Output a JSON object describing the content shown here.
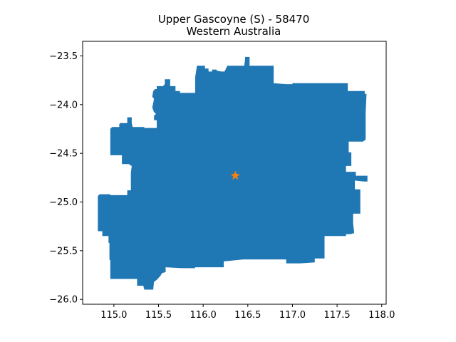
{
  "chart_data": {
    "type": "map",
    "title": "Upper Gascoyne (S) - 58470",
    "subtitle": "Western Australia",
    "xlim": [
      114.65,
      118.05
    ],
    "ylim": [
      -26.05,
      -23.35
    ],
    "x_ticks": [
      {
        "value": 115.0,
        "label": "115.0"
      },
      {
        "value": 115.5,
        "label": "115.5"
      },
      {
        "value": 116.0,
        "label": "116.0"
      },
      {
        "value": 116.5,
        "label": "116.5"
      },
      {
        "value": 117.0,
        "label": "117.0"
      },
      {
        "value": 117.5,
        "label": "117.5"
      },
      {
        "value": 118.0,
        "label": "118.0"
      }
    ],
    "y_ticks": [
      {
        "value": -23.5,
        "label": "−23.5"
      },
      {
        "value": -24.0,
        "label": "−24.0"
      },
      {
        "value": -24.5,
        "label": "−24.5"
      },
      {
        "value": -25.0,
        "label": "−25.0"
      },
      {
        "value": -25.5,
        "label": "−25.5"
      },
      {
        "value": -26.0,
        "label": "−26.0"
      }
    ],
    "region_color": "#1f77b4",
    "marker": {
      "x": 116.36,
      "y": -24.73,
      "symbol": "star",
      "color": "#ff7f0e"
    },
    "region_outline": [
      [
        116.47,
        -23.51
      ],
      [
        116.52,
        -23.51
      ],
      [
        116.52,
        -23.6
      ],
      [
        116.79,
        -23.6
      ],
      [
        116.79,
        -23.78
      ],
      [
        116.93,
        -23.79
      ],
      [
        117.0,
        -23.79
      ],
      [
        117.0,
        -23.78
      ],
      [
        117.62,
        -23.78
      ],
      [
        117.62,
        -23.86
      ],
      [
        117.81,
        -23.86
      ],
      [
        117.81,
        -23.89
      ],
      [
        117.83,
        -23.89
      ],
      [
        117.82,
        -24.08
      ],
      [
        117.82,
        -24.36
      ],
      [
        117.79,
        -24.38
      ],
      [
        117.63,
        -24.38
      ],
      [
        117.63,
        -24.49
      ],
      [
        117.66,
        -24.49
      ],
      [
        117.66,
        -24.63
      ],
      [
        117.6,
        -24.63
      ],
      [
        117.6,
        -24.69
      ],
      [
        117.71,
        -24.69
      ],
      [
        117.71,
        -24.73
      ],
      [
        117.84,
        -24.73
      ],
      [
        117.84,
        -24.79
      ],
      [
        117.8,
        -24.79
      ],
      [
        117.7,
        -24.78
      ],
      [
        117.7,
        -24.87
      ],
      [
        117.76,
        -24.87
      ],
      [
        117.76,
        -25.12
      ],
      [
        117.68,
        -25.12
      ],
      [
        117.68,
        -25.22
      ],
      [
        117.69,
        -25.3
      ],
      [
        117.69,
        -25.32
      ],
      [
        117.65,
        -25.33
      ],
      [
        117.6,
        -25.33
      ],
      [
        117.6,
        -25.35
      ],
      [
        117.36,
        -25.35
      ],
      [
        117.36,
        -25.58
      ],
      [
        117.25,
        -25.58
      ],
      [
        117.25,
        -25.62
      ],
      [
        117.09,
        -25.63
      ],
      [
        116.93,
        -25.63
      ],
      [
        116.93,
        -25.59
      ],
      [
        116.55,
        -25.59
      ],
      [
        116.46,
        -25.59
      ],
      [
        116.45,
        -25.59
      ],
      [
        116.23,
        -25.61
      ],
      [
        116.23,
        -25.67
      ],
      [
        115.91,
        -25.67
      ],
      [
        115.91,
        -25.68
      ],
      [
        115.77,
        -25.68
      ],
      [
        115.58,
        -25.67
      ],
      [
        115.58,
        -25.72
      ],
      [
        115.54,
        -25.73
      ],
      [
        115.52,
        -25.76
      ],
      [
        115.48,
        -25.8
      ],
      [
        115.45,
        -25.82
      ],
      [
        115.44,
        -25.9
      ],
      [
        115.34,
        -25.9
      ],
      [
        115.33,
        -25.86
      ],
      [
        115.26,
        -25.86
      ],
      [
        115.26,
        -25.79
      ],
      [
        115.0,
        -25.79
      ],
      [
        114.96,
        -25.79
      ],
      [
        114.96,
        -25.6
      ],
      [
        114.95,
        -25.59
      ],
      [
        114.95,
        -25.42
      ],
      [
        114.94,
        -25.42
      ],
      [
        114.94,
        -25.35
      ],
      [
        114.87,
        -25.35
      ],
      [
        114.87,
        -25.3
      ],
      [
        114.82,
        -25.3
      ],
      [
        114.82,
        -24.94
      ],
      [
        114.84,
        -24.92
      ],
      [
        114.96,
        -24.92
      ],
      [
        114.96,
        -24.93
      ],
      [
        115.15,
        -24.93
      ],
      [
        115.15,
        -24.88
      ],
      [
        115.19,
        -24.88
      ],
      [
        115.19,
        -24.7
      ],
      [
        115.2,
        -24.63
      ],
      [
        115.18,
        -24.62
      ],
      [
        115.17,
        -24.61
      ],
      [
        115.09,
        -24.61
      ],
      [
        115.09,
        -24.52
      ],
      [
        114.96,
        -24.52
      ],
      [
        114.96,
        -24.25
      ],
      [
        114.98,
        -24.23
      ],
      [
        115.06,
        -24.23
      ],
      [
        115.06,
        -24.2
      ],
      [
        115.07,
        -24.19
      ],
      [
        115.15,
        -24.19
      ],
      [
        115.15,
        -24.13
      ],
      [
        115.2,
        -24.13
      ],
      [
        115.2,
        -24.19
      ],
      [
        115.21,
        -24.23
      ],
      [
        115.34,
        -24.23
      ],
      [
        115.34,
        -24.24
      ],
      [
        115.48,
        -24.24
      ],
      [
        115.48,
        -24.16
      ],
      [
        115.45,
        -24.16
      ],
      [
        115.45,
        -24.11
      ],
      [
        115.47,
        -24.1
      ],
      [
        115.46,
        -24.08
      ],
      [
        115.45,
        -24.08
      ],
      [
        115.43,
        -24.03
      ],
      [
        115.45,
        -23.94
      ],
      [
        115.43,
        -23.92
      ],
      [
        115.44,
        -23.86
      ],
      [
        115.46,
        -23.84
      ],
      [
        115.48,
        -23.84
      ],
      [
        115.48,
        -23.81
      ],
      [
        115.55,
        -23.81
      ],
      [
        115.57,
        -23.79
      ],
      [
        115.57,
        -23.74
      ],
      [
        115.63,
        -23.74
      ],
      [
        115.63,
        -23.81
      ],
      [
        115.69,
        -23.81
      ],
      [
        115.69,
        -23.86
      ],
      [
        115.74,
        -23.86
      ],
      [
        115.74,
        -23.88
      ],
      [
        115.91,
        -23.88
      ],
      [
        115.91,
        -23.72
      ],
      [
        115.93,
        -23.6
      ],
      [
        116.02,
        -23.6
      ],
      [
        116.02,
        -23.63
      ],
      [
        116.06,
        -23.63
      ],
      [
        116.06,
        -23.66
      ],
      [
        116.1,
        -23.66
      ],
      [
        116.1,
        -23.64
      ],
      [
        116.15,
        -23.64
      ],
      [
        116.15,
        -23.65
      ],
      [
        116.2,
        -23.66
      ],
      [
        116.24,
        -23.66
      ],
      [
        116.27,
        -23.6
      ],
      [
        116.46,
        -23.6
      ],
      [
        116.47,
        -23.53
      ]
    ]
  }
}
